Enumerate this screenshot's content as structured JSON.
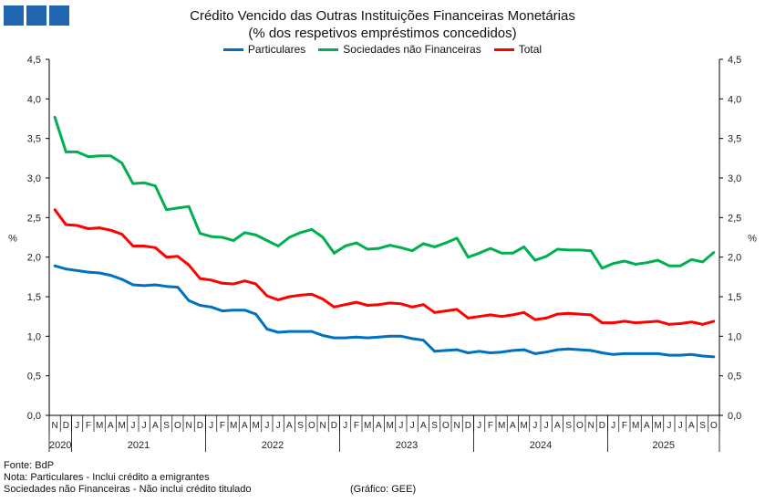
{
  "header": {
    "title": "Crédito Vencido das Outras Instituições Financeiras Monetárias",
    "subtitle": "(% dos respetivos empréstimos concedidos)"
  },
  "footer": {
    "source": "Fonte: BdP",
    "note1": "Nota: Particulares - Inclui crédito a emigrantes",
    "note2": "Sociedades não Financeiras - Não inclui crédito titulado",
    "credit": "(Gráfico: GEE)"
  },
  "chart_data": {
    "type": "line",
    "title": "Crédito Vencido das Outras Instituições Financeiras Monetárias",
    "subtitle": "(% dos respetivos empréstimos concedidos)",
    "ylabel": "%",
    "ylabel_right": "%",
    "ylim": [
      0,
      4.5
    ],
    "yticks": [
      "0,0",
      "0,5",
      "1,0",
      "1,5",
      "2,0",
      "2,5",
      "3,0",
      "3,5",
      "4,0",
      "4,5"
    ],
    "legend_position": "top-center",
    "month_labels": [
      "N",
      "D",
      "J",
      "F",
      "M",
      "A",
      "M",
      "J",
      "J",
      "A",
      "S",
      "O",
      "N",
      "D",
      "J",
      "F",
      "M",
      "A",
      "M",
      "J",
      "J",
      "A",
      "S",
      "O",
      "N",
      "D",
      "J",
      "F",
      "M",
      "A",
      "M",
      "J",
      "J",
      "A",
      "S",
      "O",
      "N",
      "D",
      "J",
      "F",
      "M",
      "A",
      "M",
      "J",
      "J",
      "A",
      "S",
      "O",
      "N",
      "D",
      "J",
      "F",
      "M",
      "A",
      "M",
      "J",
      "J",
      "A",
      "S",
      "O"
    ],
    "years": [
      {
        "label": "2020",
        "months": 2
      },
      {
        "label": "2021",
        "months": 12
      },
      {
        "label": "2022",
        "months": 12
      },
      {
        "label": "2023",
        "months": 12
      },
      {
        "label": "2024",
        "months": 12
      },
      {
        "label": "2025",
        "months": 10
      }
    ],
    "series": [
      {
        "name": "Particulares",
        "color": "#0070c0",
        "values": [
          1.89,
          1.85,
          1.83,
          1.81,
          1.8,
          1.77,
          1.72,
          1.65,
          1.64,
          1.65,
          1.63,
          1.62,
          1.45,
          1.39,
          1.37,
          1.32,
          1.33,
          1.33,
          1.28,
          1.09,
          1.05,
          1.06,
          1.06,
          1.06,
          1.01,
          0.98,
          0.98,
          0.99,
          0.98,
          0.99,
          1.0,
          1.0,
          0.97,
          0.95,
          0.81,
          0.82,
          0.83,
          0.79,
          0.81,
          0.79,
          0.8,
          0.82,
          0.83,
          0.78,
          0.8,
          0.83,
          0.84,
          0.83,
          0.82,
          0.79,
          0.77,
          0.78,
          0.78,
          0.78,
          0.78,
          0.76,
          0.76,
          0.77,
          0.75,
          0.74
        ]
      },
      {
        "name": "Sociedades não Financeiras",
        "color": "#00b050",
        "values": [
          3.77,
          3.33,
          3.33,
          3.27,
          3.28,
          3.28,
          3.19,
          2.93,
          2.94,
          2.9,
          2.6,
          2.62,
          2.64,
          2.3,
          2.26,
          2.25,
          2.21,
          2.31,
          2.28,
          2.21,
          2.14,
          2.25,
          2.31,
          2.35,
          2.25,
          2.05,
          2.14,
          2.18,
          2.1,
          2.11,
          2.15,
          2.12,
          2.08,
          2.17,
          2.13,
          2.18,
          2.24,
          2.0,
          2.05,
          2.11,
          2.05,
          2.05,
          2.13,
          1.96,
          2.01,
          2.1,
          2.09,
          2.09,
          2.08,
          1.86,
          1.92,
          1.95,
          1.91,
          1.93,
          1.96,
          1.89,
          1.89,
          1.97,
          1.94,
          2.06
        ]
      },
      {
        "name": "Total",
        "color": "#ff0000",
        "values": [
          2.6,
          2.41,
          2.4,
          2.36,
          2.37,
          2.34,
          2.29,
          2.14,
          2.14,
          2.12,
          2.0,
          2.01,
          1.9,
          1.73,
          1.71,
          1.67,
          1.66,
          1.7,
          1.66,
          1.51,
          1.46,
          1.5,
          1.52,
          1.53,
          1.47,
          1.37,
          1.4,
          1.43,
          1.39,
          1.4,
          1.42,
          1.41,
          1.37,
          1.4,
          1.3,
          1.32,
          1.34,
          1.23,
          1.25,
          1.27,
          1.25,
          1.27,
          1.3,
          1.21,
          1.23,
          1.28,
          1.29,
          1.28,
          1.27,
          1.17,
          1.17,
          1.19,
          1.17,
          1.18,
          1.19,
          1.15,
          1.16,
          1.18,
          1.15,
          1.19
        ]
      }
    ]
  }
}
